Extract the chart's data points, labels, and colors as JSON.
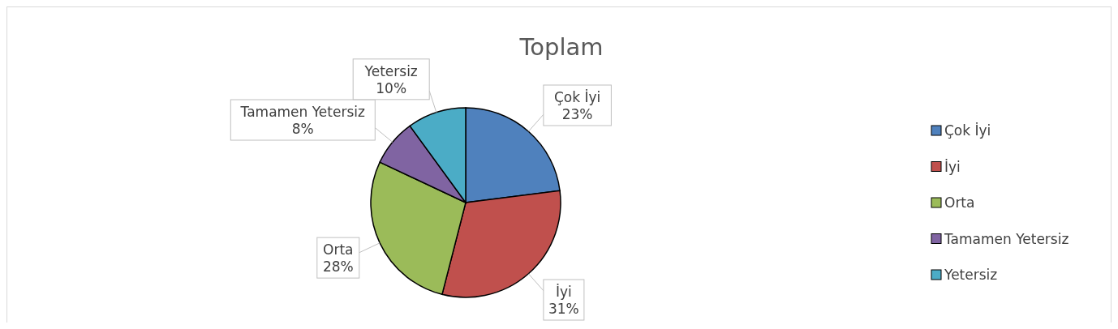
{
  "chart_data": {
    "type": "pie",
    "title": "Toplam",
    "categories": [
      "Çok İyi",
      "İyi",
      "Orta",
      "Tamamen Yetersiz",
      "Yetersiz"
    ],
    "values": [
      23,
      31,
      28,
      8,
      10
    ],
    "value_labels": [
      "23%",
      "31%",
      "28%",
      "8%",
      "10%"
    ],
    "colors": [
      "#4f81bd",
      "#c0504d",
      "#9bbb59",
      "#8064a2",
      "#4bacc6"
    ],
    "legend": "right"
  }
}
